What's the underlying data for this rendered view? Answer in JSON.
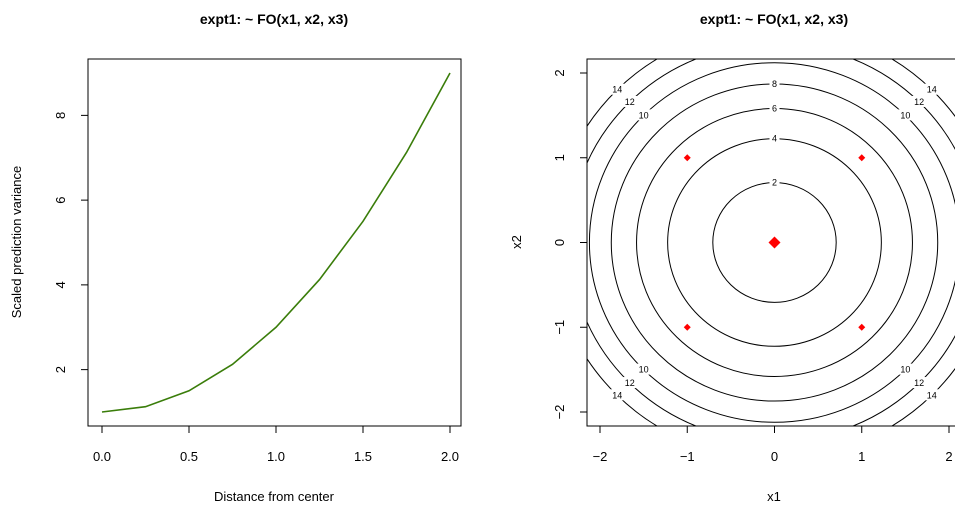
{
  "chart_data": [
    {
      "type": "line",
      "title": "expt1: ~ FO(x1, x2, x3)",
      "xlabel": "Distance from center",
      "ylabel": "Scaled prediction variance",
      "xlim": [
        0,
        2
      ],
      "ylim": [
        1,
        9
      ],
      "xticks": [
        "0.0",
        "0.5",
        "1.0",
        "1.5",
        "2.0"
      ],
      "yticks": [
        "2",
        "4",
        "6",
        "8"
      ],
      "series": [
        {
          "color": "#3a7d0a",
          "x": [
            0.0,
            0.25,
            0.5,
            0.75,
            1.0,
            1.25,
            1.5,
            1.75,
            2.0
          ],
          "y": [
            1.0,
            1.125,
            1.5,
            2.125,
            3.0,
            4.125,
            5.5,
            7.125,
            9.0
          ]
        }
      ],
      "grid": false
    },
    {
      "type": "contour",
      "title": "expt1: ~ FO(x1, x2, x3)",
      "xlabel": "x1",
      "ylabel": "x2",
      "xlim": [
        -2,
        2
      ],
      "ylim": [
        -2,
        2
      ],
      "xticks": [
        "−2",
        "−1",
        "0",
        "1",
        "2"
      ],
      "yticks": [
        "−2",
        "−1",
        "0",
        "1",
        "2"
      ],
      "contour_levels": [
        2,
        4,
        6,
        8,
        10,
        12,
        14
      ],
      "contour_labels": [
        "2",
        "4",
        "6",
        "8",
        "10",
        "12",
        "14"
      ],
      "design_points": [
        {
          "x": -1,
          "y": 1
        },
        {
          "x": 1,
          "y": 1
        },
        {
          "x": 0,
          "y": 0,
          "center": true
        },
        {
          "x": -1,
          "y": -1
        },
        {
          "x": 1,
          "y": -1
        }
      ],
      "point_color": "#ff0000",
      "line_color": "#000000",
      "grid": false
    }
  ]
}
